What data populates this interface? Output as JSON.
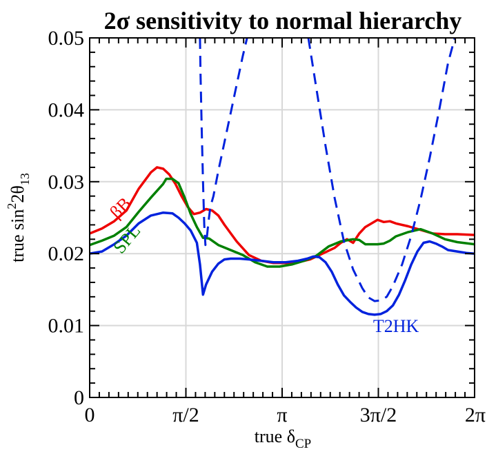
{
  "chart_data": {
    "type": "line",
    "title": "2σ sensitivity to normal hierarchy",
    "xlabel": {
      "main": "true δ",
      "sub": "CP"
    },
    "ylabel": {
      "pre": "true  sin",
      "sup": "2",
      "mid": "2θ",
      "sub": "13"
    },
    "xlim": [
      0,
      6.283185
    ],
    "ylim": [
      0,
      0.05
    ],
    "x_ticks": [
      {
        "value": 0,
        "label": "0"
      },
      {
        "value": 1.570796,
        "label": "π/2"
      },
      {
        "value": 3.141593,
        "label": "π"
      },
      {
        "value": 4.712389,
        "label": "3π/2"
      },
      {
        "value": 6.283185,
        "label": "2π"
      }
    ],
    "y_ticks": [
      {
        "value": 0,
        "label": "0"
      },
      {
        "value": 0.01,
        "label": "0.01"
      },
      {
        "value": 0.02,
        "label": "0.02"
      },
      {
        "value": 0.03,
        "label": "0.03"
      },
      {
        "value": 0.04,
        "label": "0.04"
      },
      {
        "value": 0.05,
        "label": "0.05"
      }
    ],
    "grid": true,
    "series": [
      {
        "name": "βB",
        "color": "#ee0000",
        "style": "solid",
        "label_at": [
          0.57,
          0.0258
        ],
        "label_rotation": -45,
        "x": [
          0,
          0.2,
          0.4,
          0.6,
          0.8,
          1.0,
          1.1,
          1.2,
          1.3,
          1.4,
          1.5,
          1.6,
          1.7,
          1.8,
          1.9,
          2.0,
          2.1,
          2.2,
          2.4,
          2.6,
          2.8,
          3.0,
          3.2,
          3.4,
          3.6,
          3.8,
          4.0,
          4.1,
          4.2,
          4.3,
          4.4,
          4.5,
          4.6,
          4.7,
          4.8,
          4.9,
          5.0,
          5.2,
          5.4,
          5.6,
          5.8,
          6.0,
          6.283
        ],
        "y": [
          0.0228,
          0.0235,
          0.0245,
          0.026,
          0.029,
          0.0313,
          0.032,
          0.0318,
          0.031,
          0.0297,
          0.028,
          0.0265,
          0.0255,
          0.0257,
          0.0262,
          0.026,
          0.0253,
          0.024,
          0.0217,
          0.0198,
          0.019,
          0.0187,
          0.0187,
          0.0188,
          0.0192,
          0.02,
          0.0208,
          0.0215,
          0.022,
          0.0215,
          0.0228,
          0.0237,
          0.0242,
          0.0247,
          0.0244,
          0.0245,
          0.0242,
          0.0238,
          0.0233,
          0.0228,
          0.0227,
          0.0227,
          0.0226
        ]
      },
      {
        "name": "SPL",
        "color": "#008000",
        "style": "solid",
        "label_at": [
          0.68,
          0.0215
        ],
        "label_rotation": -50,
        "x": [
          0,
          0.2,
          0.4,
          0.6,
          0.8,
          1.0,
          1.2,
          1.25,
          1.35,
          1.45,
          1.55,
          1.65,
          1.75,
          1.85,
          1.95,
          2.1,
          2.3,
          2.5,
          2.7,
          2.9,
          3.1,
          3.3,
          3.5,
          3.7,
          3.9,
          4.1,
          4.3,
          4.4,
          4.5,
          4.6,
          4.7,
          4.8,
          4.9,
          5.0,
          5.2,
          5.4,
          5.6,
          5.8,
          6.0,
          6.283
        ],
        "y": [
          0.0212,
          0.0218,
          0.0225,
          0.0237,
          0.0258,
          0.0278,
          0.0297,
          0.0304,
          0.0304,
          0.0298,
          0.0278,
          0.0255,
          0.0237,
          0.0222,
          0.0221,
          0.0212,
          0.0205,
          0.0198,
          0.0188,
          0.0182,
          0.0182,
          0.0185,
          0.019,
          0.0197,
          0.021,
          0.0217,
          0.022,
          0.0219,
          0.0213,
          0.0213,
          0.0213,
          0.0214,
          0.0218,
          0.0224,
          0.023,
          0.0234,
          0.0228,
          0.022,
          0.0216,
          0.0213
        ]
      },
      {
        "name": "T2HK",
        "color": "#0022dd",
        "style": "solid",
        "label_at": [
          5.0,
          0.0091
        ],
        "label_rotation": 0,
        "x": [
          0,
          0.2,
          0.4,
          0.6,
          0.8,
          1.0,
          1.2,
          1.35,
          1.45,
          1.55,
          1.65,
          1.75,
          1.8,
          1.85,
          1.9,
          2.0,
          2.1,
          2.2,
          2.3,
          2.45,
          2.6,
          2.8,
          3.0,
          3.2,
          3.4,
          3.55,
          3.65,
          3.75,
          3.85,
          3.95,
          4.05,
          4.15,
          4.25,
          4.35,
          4.45,
          4.55,
          4.65,
          4.75,
          4.85,
          4.95,
          5.05,
          5.15,
          5.25,
          5.35,
          5.45,
          5.55,
          5.65,
          5.75,
          5.85,
          6.0,
          6.15,
          6.283
        ],
        "y": [
          0.02,
          0.0203,
          0.0213,
          0.0225,
          0.0242,
          0.0253,
          0.0257,
          0.0256,
          0.025,
          0.0242,
          0.0232,
          0.0215,
          0.0185,
          0.0143,
          0.0157,
          0.0175,
          0.0186,
          0.0192,
          0.0193,
          0.0193,
          0.0192,
          0.019,
          0.0188,
          0.0188,
          0.019,
          0.0193,
          0.0196,
          0.0195,
          0.0188,
          0.0175,
          0.0157,
          0.0142,
          0.0133,
          0.0125,
          0.0119,
          0.0116,
          0.0115,
          0.0116,
          0.012,
          0.0128,
          0.0143,
          0.0163,
          0.0185,
          0.0203,
          0.0215,
          0.0217,
          0.0214,
          0.021,
          0.0205,
          0.0203,
          0.0201,
          0.02
        ]
      },
      {
        "name": "",
        "color": "#0022dd",
        "style": "dashed",
        "x": [
          1.8,
          1.81,
          1.83,
          1.85,
          1.87,
          1.89,
          1.91,
          1.94,
          1.97,
          2.02,
          2.1,
          2.2,
          2.3,
          2.4,
          2.5,
          2.57
        ],
        "y": [
          0.05,
          0.045,
          0.037,
          0.03,
          0.024,
          0.0212,
          0.022,
          0.0245,
          0.0265,
          0.028,
          0.0315,
          0.0355,
          0.0395,
          0.0435,
          0.0475,
          0.05
        ],
        "clip_top": true
      },
      {
        "name": "",
        "color": "#0022dd",
        "style": "dashed",
        "x": [
          3.57,
          3.7,
          3.85,
          4.0,
          4.15,
          4.3,
          4.45,
          4.55,
          4.65,
          4.75,
          4.85,
          4.95,
          5.1,
          5.25,
          5.4,
          5.55,
          5.7,
          5.85,
          5.96
        ],
        "y": [
          0.05,
          0.043,
          0.035,
          0.0277,
          0.0217,
          0.0178,
          0.0152,
          0.0139,
          0.0134,
          0.0135,
          0.014,
          0.0155,
          0.0185,
          0.0225,
          0.0275,
          0.0333,
          0.0397,
          0.0465,
          0.05
        ],
        "clip_top": true
      }
    ]
  }
}
